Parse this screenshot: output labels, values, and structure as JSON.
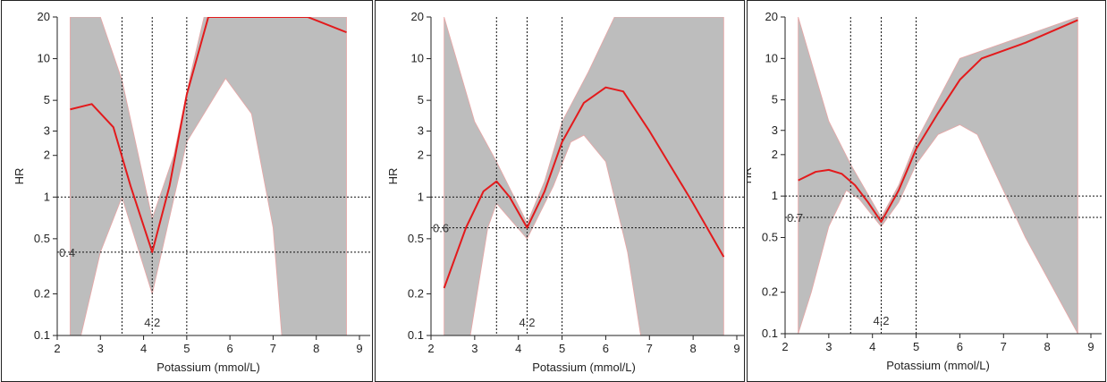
{
  "chart_data": [
    {
      "type": "line",
      "xlabel": "Potassium (mmol/L)",
      "ylabel": "HR",
      "xlim": [
        2,
        9
      ],
      "ylim": [
        0.1,
        20
      ],
      "y_scale": "log",
      "x_ticks": [
        "2",
        "3",
        "4",
        "5",
        "6",
        "7",
        "8",
        "9"
      ],
      "y_ticks": [
        "0.1",
        "0.2",
        "0.5",
        "1",
        "2",
        "3",
        "5",
        "10",
        "20"
      ],
      "y_tick_values": [
        0.1,
        0.2,
        0.5,
        1,
        2,
        3,
        5,
        10,
        20
      ],
      "grid": false,
      "colors": {
        "curve": "#e31a1c",
        "band": "#bdbdbd"
      },
      "vlines": [
        3.5,
        4.2,
        5
      ],
      "hlines": [
        1,
        0.4
      ],
      "annotations": {
        "hr_min": "0.4",
        "k_min": "4.2"
      },
      "series": [
        {
          "role": "estimate",
          "x": [
            2.3,
            2.8,
            3.3,
            3.7,
            4.2,
            4.6,
            5.0,
            5.5,
            7.8,
            8.7
          ],
          "y": [
            4.3,
            4.7,
            3.2,
            1.2,
            0.4,
            1.2,
            5.5,
            20,
            20,
            15.5
          ]
        },
        {
          "role": "ci_upper",
          "x": [
            2.3,
            3.0,
            3.5,
            4.2,
            4.7,
            5.1,
            5.4,
            8.7
          ],
          "y": [
            20,
            20,
            7,
            0.7,
            2,
            8,
            20,
            20
          ]
        },
        {
          "role": "ci_lower",
          "x": [
            2.3,
            2.55,
            3.0,
            3.5,
            4.2,
            5.0,
            5.9,
            6.5,
            7.0,
            7.2,
            7.8,
            8.7
          ],
          "y": [
            0.1,
            0.1,
            0.4,
            1,
            0.2,
            2.5,
            7.2,
            4,
            0.6,
            0.1,
            0.1,
            0.1
          ]
        }
      ]
    },
    {
      "type": "line",
      "xlabel": "Potassium (mmol/L)",
      "ylabel": "HR",
      "xlim": [
        2,
        9
      ],
      "ylim": [
        0.1,
        20
      ],
      "y_scale": "log",
      "x_ticks": [
        "2",
        "3",
        "4",
        "5",
        "6",
        "7",
        "8",
        "9"
      ],
      "y_ticks": [
        "0.1",
        "0.2",
        "0.5",
        "1",
        "2",
        "3",
        "5",
        "10",
        "20"
      ],
      "y_tick_values": [
        0.1,
        0.2,
        0.5,
        1,
        2,
        3,
        5,
        10,
        20
      ],
      "grid": false,
      "colors": {
        "curve": "#e31a1c",
        "band": "#bdbdbd"
      },
      "vlines": [
        3.5,
        4.2,
        5
      ],
      "hlines": [
        1,
        0.6
      ],
      "annotations": {
        "hr_min": "0.6",
        "k_min": "4.2"
      },
      "series": [
        {
          "role": "estimate",
          "x": [
            2.3,
            2.8,
            3.2,
            3.5,
            3.8,
            4.2,
            4.6,
            5.0,
            5.5,
            6.0,
            6.4,
            7.0,
            8.0,
            8.7
          ],
          "y": [
            0.22,
            0.6,
            1.1,
            1.3,
            1.0,
            0.6,
            1.1,
            2.5,
            4.8,
            6.2,
            5.8,
            3.0,
            0.9,
            0.37
          ]
        },
        {
          "role": "ci_upper",
          "x": [
            2.3,
            3.0,
            3.5,
            4.2,
            4.6,
            5.0,
            5.6,
            6.2,
            7.0,
            8.7
          ],
          "y": [
            20,
            3.5,
            1.8,
            0.65,
            1.3,
            3.5,
            8,
            20,
            20,
            20
          ]
        },
        {
          "role": "ci_lower",
          "x": [
            2.3,
            2.9,
            3.3,
            3.5,
            4.2,
            4.8,
            5.2,
            5.5,
            6.0,
            6.5,
            6.8,
            7.0,
            8.7
          ],
          "y": [
            0.1,
            0.1,
            0.6,
            0.9,
            0.5,
            1.2,
            2.5,
            2.8,
            1.8,
            0.4,
            0.1,
            0.1,
            0.1
          ]
        }
      ]
    },
    {
      "type": "line",
      "xlabel": "Potassium (mmol/L)",
      "ylabel": "HR",
      "xlim": [
        2,
        9
      ],
      "ylim": [
        0.1,
        20
      ],
      "y_scale": "log",
      "x_ticks": [
        "2",
        "3",
        "4",
        "5",
        "6",
        "7",
        "8",
        "9"
      ],
      "y_ticks": [
        "0.1",
        "0.2",
        "0.5",
        "1",
        "2",
        "3",
        "5",
        "10",
        "20"
      ],
      "y_tick_values": [
        0.1,
        0.2,
        0.5,
        1,
        2,
        3,
        5,
        10,
        20
      ],
      "grid": false,
      "colors": {
        "curve": "#e31a1c",
        "band": "#bdbdbd"
      },
      "vlines": [
        3.5,
        4.2,
        5
      ],
      "hlines": [
        1,
        0.7
      ],
      "annotations": {
        "hr_min": "0.7",
        "k_min": "4.2"
      },
      "series": [
        {
          "role": "estimate",
          "x": [
            2.3,
            2.7,
            3.0,
            3.3,
            3.6,
            3.9,
            4.2,
            4.6,
            5.0,
            5.5,
            6.0,
            6.5,
            7.5,
            8.7
          ],
          "y": [
            1.3,
            1.5,
            1.55,
            1.45,
            1.2,
            0.9,
            0.65,
            1.1,
            2.2,
            4,
            7,
            10,
            13,
            19
          ]
        },
        {
          "role": "ci_upper",
          "x": [
            2.3,
            3.0,
            3.5,
            4.2,
            4.6,
            5.0,
            5.5,
            6.0,
            8.7
          ],
          "y": [
            20,
            3.5,
            1.7,
            0.7,
            1.2,
            2.5,
            5,
            10,
            20
          ]
        },
        {
          "role": "ci_lower",
          "x": [
            2.3,
            2.6,
            3.0,
            3.4,
            3.7,
            4.2,
            4.6,
            5.0,
            5.5,
            6.0,
            6.4,
            7.5,
            8.7
          ],
          "y": [
            0.1,
            0.2,
            0.6,
            1.1,
            0.95,
            0.6,
            0.9,
            1.7,
            2.8,
            3.3,
            2.8,
            0.5,
            0.1
          ]
        }
      ]
    }
  ]
}
